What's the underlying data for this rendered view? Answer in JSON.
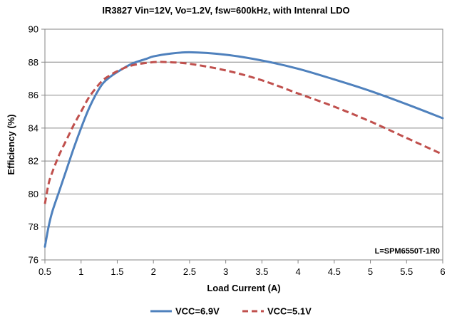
{
  "chart_data": {
    "type": "line",
    "title": "IR3827 Vin=12V, Vo=1.2V, fsw=600kHz, with Intenral LDO",
    "xlabel": "Load Current (A)",
    "ylabel": "Efficiency (%)",
    "xlim": [
      0.5,
      6
    ],
    "ylim": [
      76,
      90
    ],
    "xticks": [
      "0.5",
      "1",
      "1.5",
      "2",
      "2.5",
      "3",
      "3.5",
      "4",
      "4.5",
      "5",
      "5.5",
      "6"
    ],
    "yticks": [
      "76",
      "78",
      "80",
      "82",
      "84",
      "86",
      "88",
      "90"
    ],
    "grid": "horizontal",
    "legend_position": "bottom",
    "annotation": "L=SPM6550T-1R0",
    "series": [
      {
        "name": "VCC=6.9V",
        "color": "#4f81bd",
        "style": "solid",
        "x": [
          0.5,
          0.55,
          0.6,
          0.7,
          0.8,
          0.9,
          1.0,
          1.1,
          1.2,
          1.3,
          1.4,
          1.5,
          1.7,
          1.9,
          2.0,
          2.2,
          2.5,
          3.0,
          3.5,
          4.0,
          4.5,
          5.0,
          5.5,
          6.0
        ],
        "y": [
          76.8,
          78.0,
          78.9,
          80.2,
          81.5,
          82.8,
          84.0,
          85.1,
          86.0,
          86.7,
          87.1,
          87.4,
          87.9,
          88.2,
          88.35,
          88.5,
          88.6,
          88.45,
          88.1,
          87.6,
          86.95,
          86.25,
          85.45,
          84.6
        ]
      },
      {
        "name": "VCC=5.1V",
        "color": "#c0504d",
        "style": "dashed",
        "x": [
          0.5,
          0.55,
          0.6,
          0.7,
          0.8,
          0.9,
          1.0,
          1.1,
          1.2,
          1.3,
          1.4,
          1.5,
          1.7,
          2.0,
          2.2,
          2.5,
          3.0,
          3.5,
          4.0,
          4.5,
          5.0,
          5.5,
          6.0
        ],
        "y": [
          79.4,
          80.6,
          81.3,
          82.4,
          83.3,
          84.2,
          85.0,
          85.8,
          86.4,
          86.9,
          87.2,
          87.45,
          87.8,
          88.0,
          88.0,
          87.9,
          87.5,
          86.9,
          86.1,
          85.3,
          84.4,
          83.4,
          82.4
        ]
      }
    ]
  }
}
